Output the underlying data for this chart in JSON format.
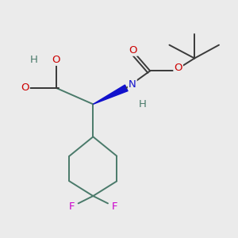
{
  "bg_color": "#ebebeb",
  "bond_color": "#4a7a6a",
  "bond_color_dark": "#3a3a3a",
  "bond_width": 1.4,
  "atom_colors": {
    "O": "#cc0000",
    "N": "#1111cc",
    "F": "#cc00cc",
    "C": "#4a7a6a",
    "H": "#4a7a6a"
  },
  "font_size": 9.5,
  "fig_size": [
    3.0,
    3.0
  ],
  "dpi": 100
}
